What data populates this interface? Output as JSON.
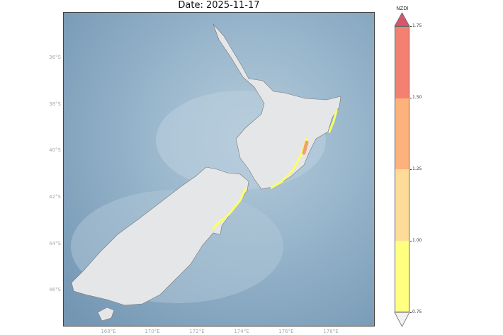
{
  "title": {
    "date_line": "Date: 2025-11-17"
  },
  "map": {
    "lat_ticks": [
      "36°S",
      "38°S",
      "40°S",
      "42°S",
      "44°S",
      "46°S"
    ],
    "lon_ticks": [
      "168°E",
      "170°E",
      "172°E",
      "174°E",
      "176°E",
      "178°E"
    ],
    "colors": {
      "ocean": "#8fb0c8",
      "land": "#e4e6e8",
      "index_low": "#ffff78",
      "index_high": "#f0866e"
    }
  },
  "colorbar": {
    "label": "NZDI",
    "ticks": [
      "1.75",
      "1.50",
      "1.25",
      "1.00",
      "0.75"
    ],
    "bins": [
      {
        "range": "0.75–1.00",
        "color": "#ffff80"
      },
      {
        "range": "1.00–1.25",
        "color": "#fedb96"
      },
      {
        "range": "1.25–1.50",
        "color": "#fdb27c"
      },
      {
        "range": "1.50–1.75",
        "color": "#f38070"
      }
    ],
    "over_color": "#d6576d",
    "under_color": "#f2f2f2"
  }
}
